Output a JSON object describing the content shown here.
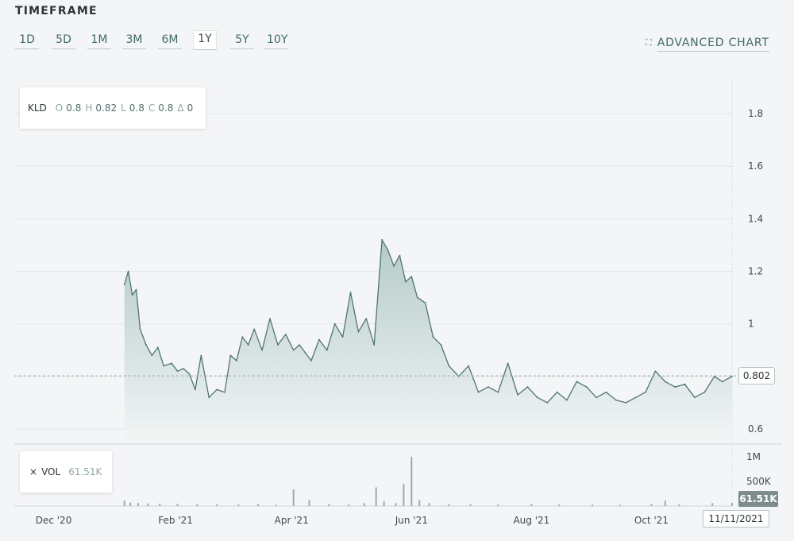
{
  "header": {
    "title": "TIMEFRAME",
    "buttons": [
      "1D",
      "5D",
      "1M",
      "3M",
      "6M",
      "1Y",
      "5Y",
      "10Y"
    ],
    "active_button": "1Y",
    "advanced_chart_label": "ADVANCED CHART",
    "advanced_chart_icon": "expand-icon"
  },
  "legend": {
    "symbol": "KLD",
    "open_label": "O",
    "open": "0.8",
    "high_label": "H",
    "high": "0.82",
    "low_label": "L",
    "low": "0.8",
    "close_label": "C",
    "close": "0.8",
    "change_label": "Δ",
    "change": "0"
  },
  "volume_legend": {
    "close_icon": "×",
    "label": "VOL",
    "value": "61.51K"
  },
  "price_tag": "0.802",
  "volume_tag": "61.51K",
  "date_tag": "11/11/2021",
  "colors": {
    "line": "#4f7571",
    "fill_top": "#b9cfcd",
    "fill_bottom": "#f1f5f5",
    "volume_bar": "#9aacab",
    "grid": "#e2e6e6"
  },
  "chart_data": {
    "type": "area",
    "symbol": "KLD",
    "x_ticks": [
      "Dec '20",
      "Feb '21",
      "Apr '21",
      "Jun '21",
      "Aug '21",
      "Oct '21"
    ],
    "y_ticks": [
      "0.6",
      "0.8",
      "1",
      "1.2",
      "1.4",
      "1.6",
      "1.8"
    ],
    "ylim": [
      0.56,
      1.96
    ],
    "last_value": 0.802,
    "price": {
      "x": [
        "2021-01-06",
        "2021-01-08",
        "2021-01-10",
        "2021-01-12",
        "2021-01-14",
        "2021-01-17",
        "2021-01-20",
        "2021-01-23",
        "2021-01-26",
        "2021-01-30",
        "2021-02-02",
        "2021-02-05",
        "2021-02-08",
        "2021-02-11",
        "2021-02-14",
        "2021-02-18",
        "2021-02-22",
        "2021-02-26",
        "2021-03-01",
        "2021-03-04",
        "2021-03-07",
        "2021-03-10",
        "2021-03-13",
        "2021-03-17",
        "2021-03-21",
        "2021-03-25",
        "2021-03-29",
        "2021-04-02",
        "2021-04-05",
        "2021-04-08",
        "2021-04-11",
        "2021-04-15",
        "2021-04-19",
        "2021-04-23",
        "2021-04-27",
        "2021-05-01",
        "2021-05-05",
        "2021-05-09",
        "2021-05-13",
        "2021-05-17",
        "2021-05-20",
        "2021-05-23",
        "2021-05-26",
        "2021-05-29",
        "2021-06-01",
        "2021-06-04",
        "2021-06-08",
        "2021-06-12",
        "2021-06-16",
        "2021-06-20",
        "2021-06-25",
        "2021-06-30",
        "2021-07-05",
        "2021-07-10",
        "2021-07-15",
        "2021-07-20",
        "2021-07-25",
        "2021-07-30",
        "2021-08-04",
        "2021-08-09",
        "2021-08-14",
        "2021-08-19",
        "2021-08-24",
        "2021-08-29",
        "2021-09-03",
        "2021-09-08",
        "2021-09-13",
        "2021-09-18",
        "2021-09-23",
        "2021-09-28",
        "2021-10-03",
        "2021-10-08",
        "2021-10-13",
        "2021-10-18",
        "2021-10-23",
        "2021-10-28",
        "2021-11-02",
        "2021-11-06",
        "2021-11-11"
      ],
      "y": [
        1.15,
        1.2,
        1.11,
        1.13,
        0.98,
        0.92,
        0.88,
        0.91,
        0.84,
        0.85,
        0.82,
        0.83,
        0.81,
        0.75,
        0.88,
        0.72,
        0.75,
        0.74,
        0.88,
        0.86,
        0.95,
        0.92,
        0.98,
        0.9,
        1.02,
        0.92,
        0.96,
        0.9,
        0.92,
        0.89,
        0.86,
        0.94,
        0.9,
        1.0,
        0.95,
        1.12,
        0.97,
        1.02,
        0.92,
        1.32,
        1.28,
        1.22,
        1.26,
        1.16,
        1.18,
        1.1,
        1.08,
        0.95,
        0.92,
        0.84,
        0.8,
        0.84,
        0.74,
        0.76,
        0.74,
        0.85,
        0.73,
        0.76,
        0.72,
        0.7,
        0.74,
        0.71,
        0.78,
        0.76,
        0.72,
        0.74,
        0.71,
        0.7,
        0.72,
        0.74,
        0.82,
        0.78,
        0.76,
        0.77,
        0.72,
        0.74,
        0.8,
        0.78,
        0.8
      ]
    },
    "volume": {
      "label": "VOL",
      "y_ticks": [
        "1M",
        "500K"
      ],
      "x": [
        "2021-01-06",
        "2021-01-09",
        "2021-01-13",
        "2021-01-18",
        "2021-01-24",
        "2021-02-02",
        "2021-02-12",
        "2021-02-22",
        "2021-03-05",
        "2021-03-15",
        "2021-03-24",
        "2021-04-02",
        "2021-04-10",
        "2021-04-20",
        "2021-04-30",
        "2021-05-08",
        "2021-05-14",
        "2021-05-18",
        "2021-05-24",
        "2021-05-28",
        "2021-06-01",
        "2021-06-05",
        "2021-06-10",
        "2021-06-20",
        "2021-07-01",
        "2021-07-15",
        "2021-08-01",
        "2021-08-15",
        "2021-09-01",
        "2021-09-15",
        "2021-10-01",
        "2021-10-08",
        "2021-10-15",
        "2021-11-01",
        "2021-11-11"
      ],
      "y": [
        110000,
        70000,
        60000,
        55000,
        50000,
        45000,
        40000,
        35000,
        30000,
        40000,
        25000,
        340000,
        120000,
        40000,
        30000,
        60000,
        380000,
        100000,
        60000,
        450000,
        1000000,
        120000,
        60000,
        40000,
        35000,
        30000,
        40000,
        30000,
        30000,
        25000,
        40000,
        110000,
        30000,
        60000,
        61510
      ]
    }
  }
}
